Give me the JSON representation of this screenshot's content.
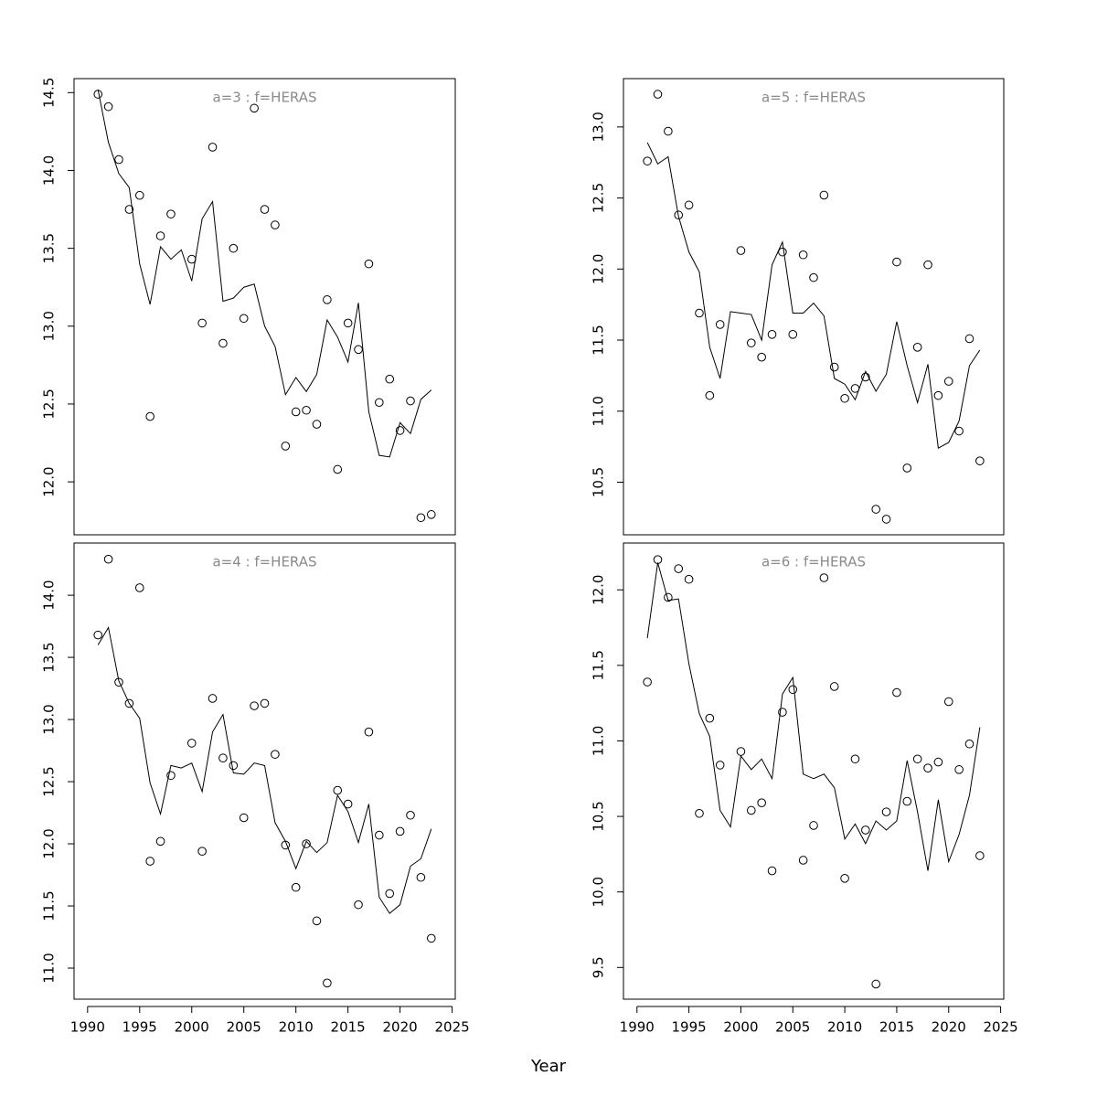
{
  "xlabel": "Year",
  "chart_data": [
    {
      "type": "line",
      "title": "a=3  :  f=HERAS",
      "x": [
        1991,
        1992,
        1993,
        1994,
        1995,
        1996,
        1997,
        1998,
        1999,
        2000,
        2001,
        2002,
        2003,
        2004,
        2005,
        2006,
        2007,
        2008,
        2009,
        2010,
        2011,
        2012,
        2013,
        2014,
        2015,
        2016,
        2017,
        2018,
        2019,
        2020,
        2021,
        2022,
        2023
      ],
      "xlim": [
        1988.7,
        2025.3
      ],
      "ylim": [
        11.66,
        14.59
      ],
      "yticks": [
        {
          "value": 12,
          "label": "12.0"
        },
        12.5,
        {
          "value": 13,
          "label": "13.0"
        },
        13.5,
        {
          "value": 14,
          "label": "14.0"
        },
        14.5
      ],
      "series": [
        {
          "style": "points",
          "color": "#000000",
          "values": [
            14.49,
            14.41,
            14.07,
            13.75,
            13.84,
            12.42,
            13.58,
            13.72,
            null,
            13.43,
            13.02,
            14.15,
            12.89,
            13.5,
            13.05,
            14.4,
            13.75,
            13.65,
            12.23,
            12.45,
            12.46,
            12.37,
            13.17,
            12.08,
            13.02,
            12.85,
            13.4,
            12.51,
            12.66,
            12.33,
            12.52,
            11.77,
            11.79
          ]
        },
        {
          "style": "line",
          "color": "#000000",
          "values": [
            14.52,
            14.18,
            13.98,
            13.89,
            13.4,
            13.14,
            13.51,
            13.43,
            13.49,
            13.29,
            13.69,
            13.8,
            13.16,
            13.18,
            13.25,
            13.27,
            13.0,
            12.87,
            12.56,
            12.67,
            12.58,
            12.69,
            13.04,
            12.93,
            12.77,
            13.15,
            12.45,
            12.17,
            12.16,
            12.38,
            12.31,
            12.53,
            12.59
          ]
        }
      ]
    },
    {
      "type": "line",
      "title": "a=4  :  f=HERAS",
      "x": [
        1991,
        1992,
        1993,
        1994,
        1995,
        1996,
        1997,
        1998,
        1999,
        2000,
        2001,
        2002,
        2003,
        2004,
        2005,
        2006,
        2007,
        2008,
        2009,
        2010,
        2011,
        2012,
        2013,
        2014,
        2015,
        2016,
        2017,
        2018,
        2019,
        2020,
        2021,
        2022,
        2023
      ],
      "xlim": [
        1988.7,
        2025.3
      ],
      "ylim": [
        10.75,
        14.42
      ],
      "xticks": [
        1990,
        1995,
        2000,
        2005,
        2010,
        2015,
        2020,
        2025
      ],
      "yticks": [
        {
          "value": 11,
          "label": "11.0"
        },
        11.5,
        {
          "value": 12,
          "label": "12.0"
        },
        12.5,
        {
          "value": 13,
          "label": "13.0"
        },
        13.5,
        {
          "value": 14,
          "label": "14.0"
        }
      ],
      "series": [
        {
          "style": "points",
          "color": "#000000",
          "values": [
            13.68,
            14.29,
            13.3,
            13.13,
            14.06,
            11.86,
            12.02,
            12.55,
            null,
            12.81,
            11.94,
            13.17,
            12.69,
            12.63,
            12.21,
            13.11,
            13.13,
            12.72,
            11.99,
            11.65,
            12.0,
            11.38,
            10.88,
            12.43,
            12.32,
            11.51,
            12.9,
            12.07,
            11.6,
            12.1,
            12.23,
            11.73,
            11.24
          ]
        },
        {
          "style": "line",
          "color": "#000000",
          "values": [
            13.6,
            13.74,
            13.31,
            13.13,
            13.01,
            12.49,
            12.24,
            12.63,
            12.61,
            12.65,
            12.42,
            12.9,
            13.04,
            12.57,
            12.56,
            12.65,
            12.63,
            12.17,
            12.02,
            11.8,
            12.02,
            11.93,
            12.01,
            12.39,
            12.26,
            12.01,
            12.32,
            11.57,
            11.44,
            11.51,
            11.82,
            11.88,
            12.12
          ]
        }
      ]
    },
    {
      "type": "line",
      "title": "a=5  :  f=HERAS",
      "x": [
        1991,
        1992,
        1993,
        1994,
        1995,
        1996,
        1997,
        1998,
        1999,
        2000,
        2001,
        2002,
        2003,
        2004,
        2005,
        2006,
        2007,
        2008,
        2009,
        2010,
        2011,
        2012,
        2013,
        2014,
        2015,
        2016,
        2017,
        2018,
        2019,
        2020,
        2021,
        2022,
        2023
      ],
      "xlim": [
        1988.7,
        2025.3
      ],
      "ylim": [
        10.13,
        13.34
      ],
      "yticks": [
        10.5,
        {
          "value": 11,
          "label": "11.0"
        },
        11.5,
        {
          "value": 12,
          "label": "12.0"
        },
        12.5,
        {
          "value": 13,
          "label": "13.0"
        }
      ],
      "series": [
        {
          "style": "points",
          "color": "#000000",
          "values": [
            12.76,
            13.23,
            12.97,
            12.38,
            12.45,
            11.69,
            11.11,
            11.61,
            null,
            12.13,
            11.48,
            11.38,
            11.54,
            12.12,
            11.54,
            12.1,
            11.94,
            12.52,
            11.31,
            11.09,
            11.16,
            11.24,
            10.31,
            10.24,
            12.05,
            10.6,
            11.45,
            12.03,
            11.11,
            11.21,
            10.86,
            11.51,
            10.65
          ]
        },
        {
          "style": "line",
          "color": "#000000",
          "values": [
            12.89,
            12.74,
            12.79,
            12.37,
            12.12,
            11.98,
            11.45,
            11.23,
            11.7,
            11.69,
            11.68,
            11.5,
            12.03,
            12.19,
            11.69,
            11.69,
            11.76,
            11.67,
            11.23,
            11.19,
            11.08,
            11.28,
            11.14,
            11.26,
            11.63,
            11.32,
            11.06,
            11.33,
            10.74,
            10.78,
            10.93,
            11.32,
            11.43
          ]
        }
      ]
    },
    {
      "type": "line",
      "title": "a=6  :  f=HERAS",
      "x": [
        1991,
        1992,
        1993,
        1994,
        1995,
        1996,
        1997,
        1998,
        1999,
        2000,
        2001,
        2002,
        2003,
        2004,
        2005,
        2006,
        2007,
        2008,
        2009,
        2010,
        2011,
        2012,
        2013,
        2014,
        2015,
        2016,
        2017,
        2018,
        2019,
        2020,
        2021,
        2022,
        2023
      ],
      "xlim": [
        1988.7,
        2025.3
      ],
      "ylim": [
        9.29,
        12.31
      ],
      "xticks": [
        1990,
        1995,
        2000,
        2005,
        2010,
        2015,
        2020,
        2025
      ],
      "yticks": [
        9.5,
        {
          "value": 10,
          "label": "10.0"
        },
        10.5,
        {
          "value": 11,
          "label": "11.0"
        },
        11.5,
        {
          "value": 12,
          "label": "12.0"
        }
      ],
      "series": [
        {
          "style": "points",
          "color": "#000000",
          "values": [
            11.39,
            12.2,
            11.95,
            12.14,
            12.07,
            10.52,
            11.15,
            10.84,
            null,
            10.93,
            10.54,
            10.59,
            10.14,
            11.19,
            11.34,
            10.21,
            10.44,
            12.08,
            11.36,
            10.09,
            10.88,
            10.41,
            9.39,
            10.53,
            11.32,
            10.6,
            10.88,
            10.82,
            10.86,
            11.26,
            10.81,
            10.98,
            10.24
          ]
        },
        {
          "style": "line",
          "color": "#000000",
          "values": [
            11.68,
            12.18,
            11.93,
            11.94,
            11.51,
            11.18,
            11.03,
            10.54,
            10.43,
            10.9,
            10.81,
            10.88,
            10.75,
            11.31,
            11.42,
            10.78,
            10.75,
            10.78,
            10.69,
            10.35,
            10.45,
            10.32,
            10.47,
            10.41,
            10.47,
            10.87,
            10.53,
            10.14,
            10.61,
            10.2,
            10.38,
            10.64,
            11.09
          ]
        }
      ]
    }
  ]
}
